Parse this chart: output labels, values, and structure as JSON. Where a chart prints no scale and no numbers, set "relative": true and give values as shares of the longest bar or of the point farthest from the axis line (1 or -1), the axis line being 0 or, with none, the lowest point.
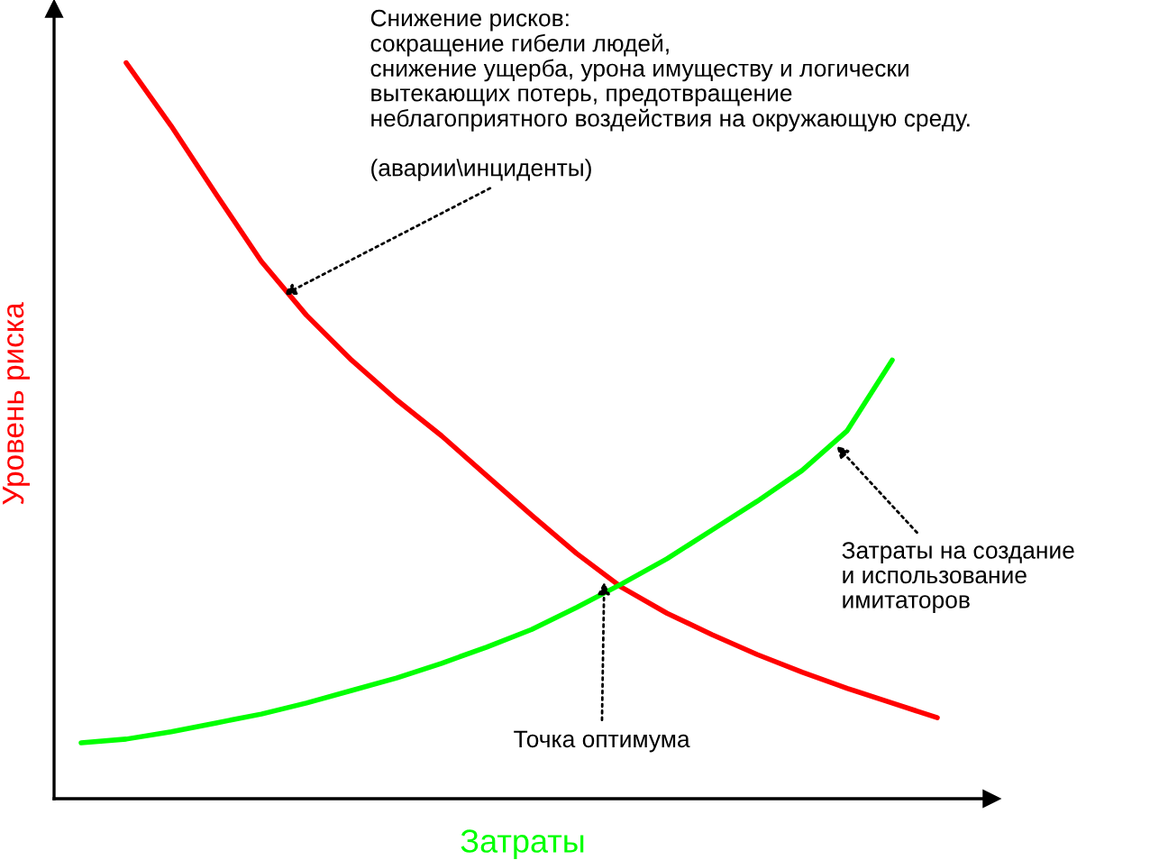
{
  "chart_data": {
    "type": "line",
    "relative": true,
    "xlabel": "Затраты",
    "ylabel": "Уровень риска",
    "legend": false,
    "marker": "none",
    "line_style": "solid",
    "categories": [
      null,
      null,
      null,
      null,
      null,
      null,
      null,
      null,
      null,
      null,
      null,
      null,
      null,
      null,
      null,
      null,
      null,
      null,
      null,
      null
    ],
    "series": [
      {
        "color": "#ff0000",
        "values": [
          null,
          1.0,
          0.914,
          0.821,
          0.73,
          0.657,
          0.596,
          0.542,
          0.493,
          0.439,
          0.385,
          0.333,
          0.287,
          0.252,
          0.223,
          0.196,
          0.172,
          0.15,
          0.13,
          0.11
        ]
      },
      {
        "color": "#00ff00",
        "values": [
          0.076,
          0.081,
          0.091,
          0.103,
          0.115,
          0.13,
          0.147,
          0.164,
          0.184,
          0.206,
          0.23,
          0.26,
          0.292,
          0.326,
          0.365,
          0.404,
          0.446,
          0.5,
          0.596,
          null
        ]
      }
    ],
    "annotations": [
      "Снижение рисков:\nсокращение гибели людей,\nснижение ущерба, урона имуществу и логически\nвытекающих потерь, предотвращение\nнеблагоприятного воздействия на окружающую среду.\n\n(аварии\\инциденты)",
      "Затраты на создание\nи использование\nимитаторов",
      "Точка оптимума"
    ]
  }
}
